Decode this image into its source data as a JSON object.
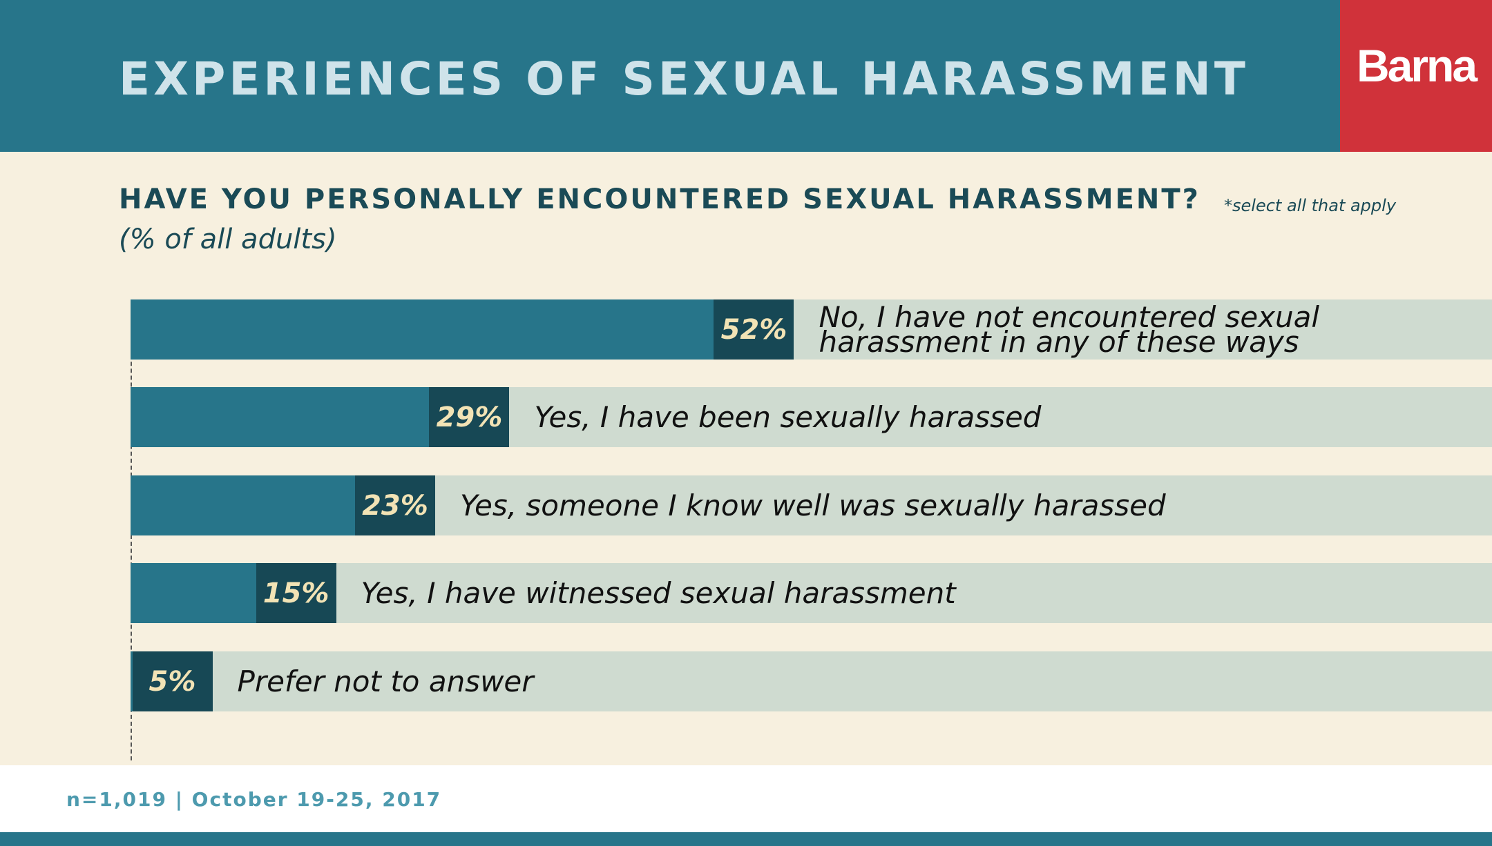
{
  "header": {
    "title": "EXPERIENCES OF SEXUAL HARASSMENT",
    "logo": "Barna"
  },
  "chart_data": {
    "type": "bar",
    "title": "HAVE YOU PERSONALLY ENCOUNTERED SEXUAL HARASSMENT?",
    "note": "*select all that apply",
    "subtitle": "(% of all adults)",
    "categories": [
      "No, I have not encountered sexual harassment in any of these ways",
      "Yes, I have been sexually harassed",
      "Yes, someone I know well was sexually harassed",
      "Yes, I have witnessed sexual harassment",
      "Prefer not to answer"
    ],
    "values": [
      52,
      29,
      23,
      15,
      5
    ],
    "value_labels": [
      "52%",
      "29%",
      "23%",
      "15%",
      "5%"
    ],
    "color": "#27758a",
    "label_color": "#174855",
    "track_color": "#cfdbd0"
  },
  "footer": "n=1,019 | October 19-25, 2017"
}
